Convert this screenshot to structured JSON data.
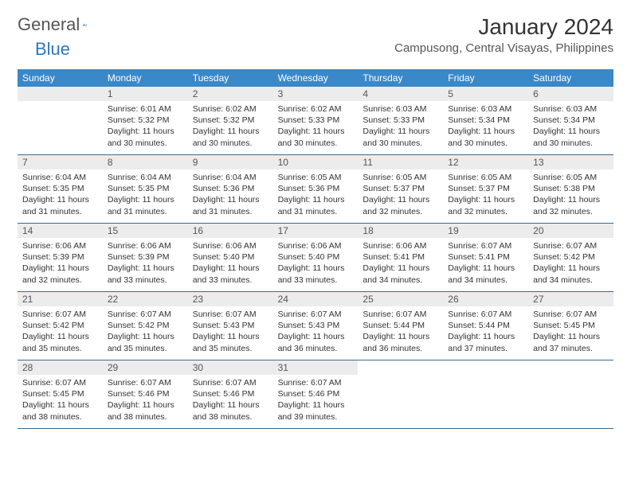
{
  "brand": {
    "part1": "General",
    "part2": "Blue"
  },
  "title": "January 2024",
  "location": "Campusong, Central Visayas, Philippines",
  "colors": {
    "header_bg": "#3a88c8",
    "header_text": "#ffffff",
    "daynum_bg": "#ececec",
    "cell_border": "#3a6a93",
    "brand_blue": "#2f77bb",
    "text": "#333333",
    "background": "#ffffff"
  },
  "typography": {
    "month_title_fontsize": 28,
    "location_fontsize": 15,
    "dayheader_fontsize": 12,
    "daynum_fontsize": 12,
    "info_fontsize": 10.5
  },
  "weekdays": [
    "Sunday",
    "Monday",
    "Tuesday",
    "Wednesday",
    "Thursday",
    "Friday",
    "Saturday"
  ],
  "first_weekday_index": 1,
  "days": [
    {
      "n": 1,
      "sunrise": "6:01 AM",
      "sunset": "5:32 PM",
      "daylight": "11 hours and 30 minutes."
    },
    {
      "n": 2,
      "sunrise": "6:02 AM",
      "sunset": "5:32 PM",
      "daylight": "11 hours and 30 minutes."
    },
    {
      "n": 3,
      "sunrise": "6:02 AM",
      "sunset": "5:33 PM",
      "daylight": "11 hours and 30 minutes."
    },
    {
      "n": 4,
      "sunrise": "6:03 AM",
      "sunset": "5:33 PM",
      "daylight": "11 hours and 30 minutes."
    },
    {
      "n": 5,
      "sunrise": "6:03 AM",
      "sunset": "5:34 PM",
      "daylight": "11 hours and 30 minutes."
    },
    {
      "n": 6,
      "sunrise": "6:03 AM",
      "sunset": "5:34 PM",
      "daylight": "11 hours and 30 minutes."
    },
    {
      "n": 7,
      "sunrise": "6:04 AM",
      "sunset": "5:35 PM",
      "daylight": "11 hours and 31 minutes."
    },
    {
      "n": 8,
      "sunrise": "6:04 AM",
      "sunset": "5:35 PM",
      "daylight": "11 hours and 31 minutes."
    },
    {
      "n": 9,
      "sunrise": "6:04 AM",
      "sunset": "5:36 PM",
      "daylight": "11 hours and 31 minutes."
    },
    {
      "n": 10,
      "sunrise": "6:05 AM",
      "sunset": "5:36 PM",
      "daylight": "11 hours and 31 minutes."
    },
    {
      "n": 11,
      "sunrise": "6:05 AM",
      "sunset": "5:37 PM",
      "daylight": "11 hours and 32 minutes."
    },
    {
      "n": 12,
      "sunrise": "6:05 AM",
      "sunset": "5:37 PM",
      "daylight": "11 hours and 32 minutes."
    },
    {
      "n": 13,
      "sunrise": "6:05 AM",
      "sunset": "5:38 PM",
      "daylight": "11 hours and 32 minutes."
    },
    {
      "n": 14,
      "sunrise": "6:06 AM",
      "sunset": "5:39 PM",
      "daylight": "11 hours and 32 minutes."
    },
    {
      "n": 15,
      "sunrise": "6:06 AM",
      "sunset": "5:39 PM",
      "daylight": "11 hours and 33 minutes."
    },
    {
      "n": 16,
      "sunrise": "6:06 AM",
      "sunset": "5:40 PM",
      "daylight": "11 hours and 33 minutes."
    },
    {
      "n": 17,
      "sunrise": "6:06 AM",
      "sunset": "5:40 PM",
      "daylight": "11 hours and 33 minutes."
    },
    {
      "n": 18,
      "sunrise": "6:06 AM",
      "sunset": "5:41 PM",
      "daylight": "11 hours and 34 minutes."
    },
    {
      "n": 19,
      "sunrise": "6:07 AM",
      "sunset": "5:41 PM",
      "daylight": "11 hours and 34 minutes."
    },
    {
      "n": 20,
      "sunrise": "6:07 AM",
      "sunset": "5:42 PM",
      "daylight": "11 hours and 34 minutes."
    },
    {
      "n": 21,
      "sunrise": "6:07 AM",
      "sunset": "5:42 PM",
      "daylight": "11 hours and 35 minutes."
    },
    {
      "n": 22,
      "sunrise": "6:07 AM",
      "sunset": "5:42 PM",
      "daylight": "11 hours and 35 minutes."
    },
    {
      "n": 23,
      "sunrise": "6:07 AM",
      "sunset": "5:43 PM",
      "daylight": "11 hours and 35 minutes."
    },
    {
      "n": 24,
      "sunrise": "6:07 AM",
      "sunset": "5:43 PM",
      "daylight": "11 hours and 36 minutes."
    },
    {
      "n": 25,
      "sunrise": "6:07 AM",
      "sunset": "5:44 PM",
      "daylight": "11 hours and 36 minutes."
    },
    {
      "n": 26,
      "sunrise": "6:07 AM",
      "sunset": "5:44 PM",
      "daylight": "11 hours and 37 minutes."
    },
    {
      "n": 27,
      "sunrise": "6:07 AM",
      "sunset": "5:45 PM",
      "daylight": "11 hours and 37 minutes."
    },
    {
      "n": 28,
      "sunrise": "6:07 AM",
      "sunset": "5:45 PM",
      "daylight": "11 hours and 38 minutes."
    },
    {
      "n": 29,
      "sunrise": "6:07 AM",
      "sunset": "5:46 PM",
      "daylight": "11 hours and 38 minutes."
    },
    {
      "n": 30,
      "sunrise": "6:07 AM",
      "sunset": "5:46 PM",
      "daylight": "11 hours and 38 minutes."
    },
    {
      "n": 31,
      "sunrise": "6:07 AM",
      "sunset": "5:46 PM",
      "daylight": "11 hours and 39 minutes."
    }
  ],
  "labels": {
    "sunrise": "Sunrise:",
    "sunset": "Sunset:",
    "daylight": "Daylight:"
  }
}
